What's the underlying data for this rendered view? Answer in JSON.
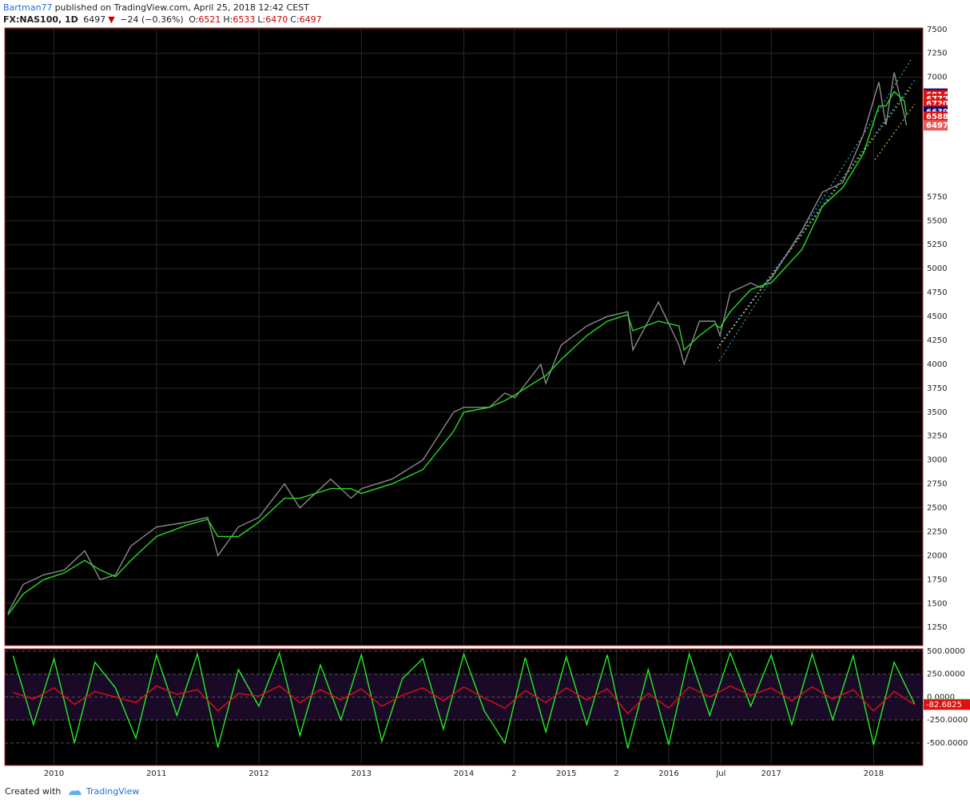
{
  "header": {
    "author": "Bartman77",
    "published": "published on TradingView.com, April 25, 2018 12:42 CEST",
    "symbol": "FX:NAS100, 1D",
    "last": "6497",
    "arrow": "▼",
    "change": "−24 (−0.36%)",
    "ohlc": [
      {
        "label": "O:",
        "value": "6521"
      },
      {
        "label": "H:",
        "value": "6533"
      },
      {
        "label": "L:",
        "value": "6470"
      },
      {
        "label": "C:",
        "value": "6497"
      }
    ]
  },
  "footer": {
    "created": "Created with",
    "brand": "TradingView"
  },
  "chart_data": [
    {
      "type": "line",
      "xlim": [
        2009.52,
        2018.48
      ],
      "ylim": [
        1060,
        7515
      ],
      "grid": true,
      "xticks": [
        2010,
        2011,
        2012,
        2013,
        2014,
        {
          "value": 2014.49,
          "label": "2"
        },
        2015,
        {
          "value": 2015.49,
          "label": "2"
        },
        2016,
        {
          "value": 2016.51,
          "label": "Jul"
        },
        2017,
        2018
      ],
      "yticks": [
        1250,
        1500,
        1750,
        2000,
        2250,
        2500,
        2750,
        3000,
        3250,
        3500,
        3750,
        4000,
        4250,
        4500,
        4750,
        5000,
        5250,
        5500,
        5750,
        7000,
        7250,
        7500
      ],
      "x": [
        2009.55,
        2009.7,
        2009.9,
        2010.1,
        2010.3,
        2010.45,
        2010.6,
        2010.75,
        2011.0,
        2011.3,
        2011.5,
        2011.6,
        2011.8,
        2012.0,
        2012.25,
        2012.4,
        2012.7,
        2012.9,
        2013.0,
        2013.3,
        2013.6,
        2013.9,
        2014.0,
        2014.25,
        2014.4,
        2014.5,
        2014.75,
        2014.8,
        2014.95,
        2015.2,
        2015.4,
        2015.6,
        2015.65,
        2015.9,
        2016.1,
        2016.15,
        2016.3,
        2016.45,
        2016.5,
        2016.6,
        2016.8,
        2016.9,
        2017.0,
        2017.3,
        2017.5,
        2017.7,
        2017.9,
        2018.05,
        2018.12,
        2018.2,
        2018.3,
        2018.32
      ],
      "series": [
        {
          "color": "#8a8a8a",
          "values": [
            1400,
            1700,
            1800,
            1850,
            2050,
            1750,
            1800,
            2100,
            2300,
            2350,
            2400,
            2000,
            2300,
            2400,
            2750,
            2500,
            2800,
            2600,
            2700,
            2800,
            3000,
            3500,
            3550,
            3550,
            3700,
            3650,
            4000,
            3800,
            4200,
            4400,
            4500,
            4550,
            4150,
            4650,
            4200,
            4000,
            4450,
            4450,
            4300,
            4750,
            4850,
            4800,
            4900,
            5400,
            5800,
            5900,
            6400,
            6950,
            6500,
            7050,
            6600,
            6497
          ]
        },
        {
          "color": "#22dd22",
          "values": [
            1380,
            1600,
            1750,
            1820,
            1950,
            1850,
            1780,
            1950,
            2200,
            2320,
            2380,
            2200,
            2200,
            2350,
            2600,
            2600,
            2700,
            2700,
            2650,
            2750,
            2900,
            3300,
            3500,
            3550,
            3620,
            3680,
            3850,
            3880,
            4050,
            4300,
            4450,
            4520,
            4350,
            4450,
            4400,
            4150,
            4300,
            4420,
            4380,
            4550,
            4780,
            4820,
            4850,
            5200,
            5650,
            5850,
            6200,
            6700,
            6700,
            6850,
            6750,
            6600
          ]
        }
      ],
      "price_labels": [
        {
          "value": 6828,
          "color": "#00007a"
        },
        {
          "value": 6814,
          "color": "#e01010"
        },
        {
          "value": 6772,
          "color": "#e01010"
        },
        {
          "value": 6720,
          "color": "#e01010"
        },
        {
          "value": 6656,
          "color": "#e01010"
        },
        {
          "value": 6639,
          "color": "#00007a"
        },
        {
          "value": 6588,
          "color": "#e01010"
        },
        {
          "value": 6497,
          "color": "#e06060"
        }
      ]
    },
    {
      "type": "line",
      "xlim": [
        2009.52,
        2018.48
      ],
      "ylim": [
        -745,
        526
      ],
      "yticks": [
        {
          "value": 500,
          "label": "500.0000"
        },
        {
          "value": 250,
          "label": "250.0000"
        },
        {
          "value": 0,
          "label": "0.0000"
        },
        {
          "value": -250,
          "label": "-250.0000"
        },
        {
          "value": -500,
          "label": "-500.0000"
        }
      ],
      "x": [
        2009.6,
        2009.8,
        2010,
        2010.2,
        2010.4,
        2010.6,
        2010.8,
        2011,
        2011.2,
        2011.4,
        2011.6,
        2011.8,
        2012,
        2012.2,
        2012.4,
        2012.6,
        2012.8,
        2013,
        2013.2,
        2013.4,
        2013.6,
        2013.8,
        2014,
        2014.2,
        2014.4,
        2014.6,
        2014.8,
        2015,
        2015.2,
        2015.4,
        2015.6,
        2015.8,
        2016,
        2016.2,
        2016.4,
        2016.6,
        2016.8,
        2017,
        2017.2,
        2017.4,
        2017.6,
        2017.8,
        2018,
        2018.2,
        2018.4
      ],
      "series": [
        {
          "color": "#22ee22",
          "values": [
            450,
            -300,
            420,
            -500,
            380,
            100,
            -450,
            460,
            -200,
            470,
            -550,
            300,
            -100,
            480,
            -420,
            350,
            -250,
            460,
            -480,
            200,
            420,
            -350,
            470,
            -150,
            -500,
            430,
            -380,
            440,
            -300,
            460,
            -560,
            300,
            -520,
            470,
            -200,
            480,
            -100,
            460,
            -300,
            470,
            -250,
            450,
            -520,
            380,
            -76.6324
          ]
        },
        {
          "color": "#e01010",
          "values": [
            50,
            -20,
            100,
            -80,
            60,
            0,
            -60,
            120,
            30,
            80,
            -150,
            40,
            10,
            120,
            -60,
            80,
            -30,
            90,
            -100,
            20,
            100,
            -40,
            110,
            -10,
            -120,
            70,
            -60,
            100,
            -30,
            90,
            -180,
            40,
            -120,
            110,
            0,
            120,
            20,
            100,
            -40,
            110,
            -20,
            80,
            -150,
            60,
            -82.6825
          ]
        }
      ]
    }
  ]
}
